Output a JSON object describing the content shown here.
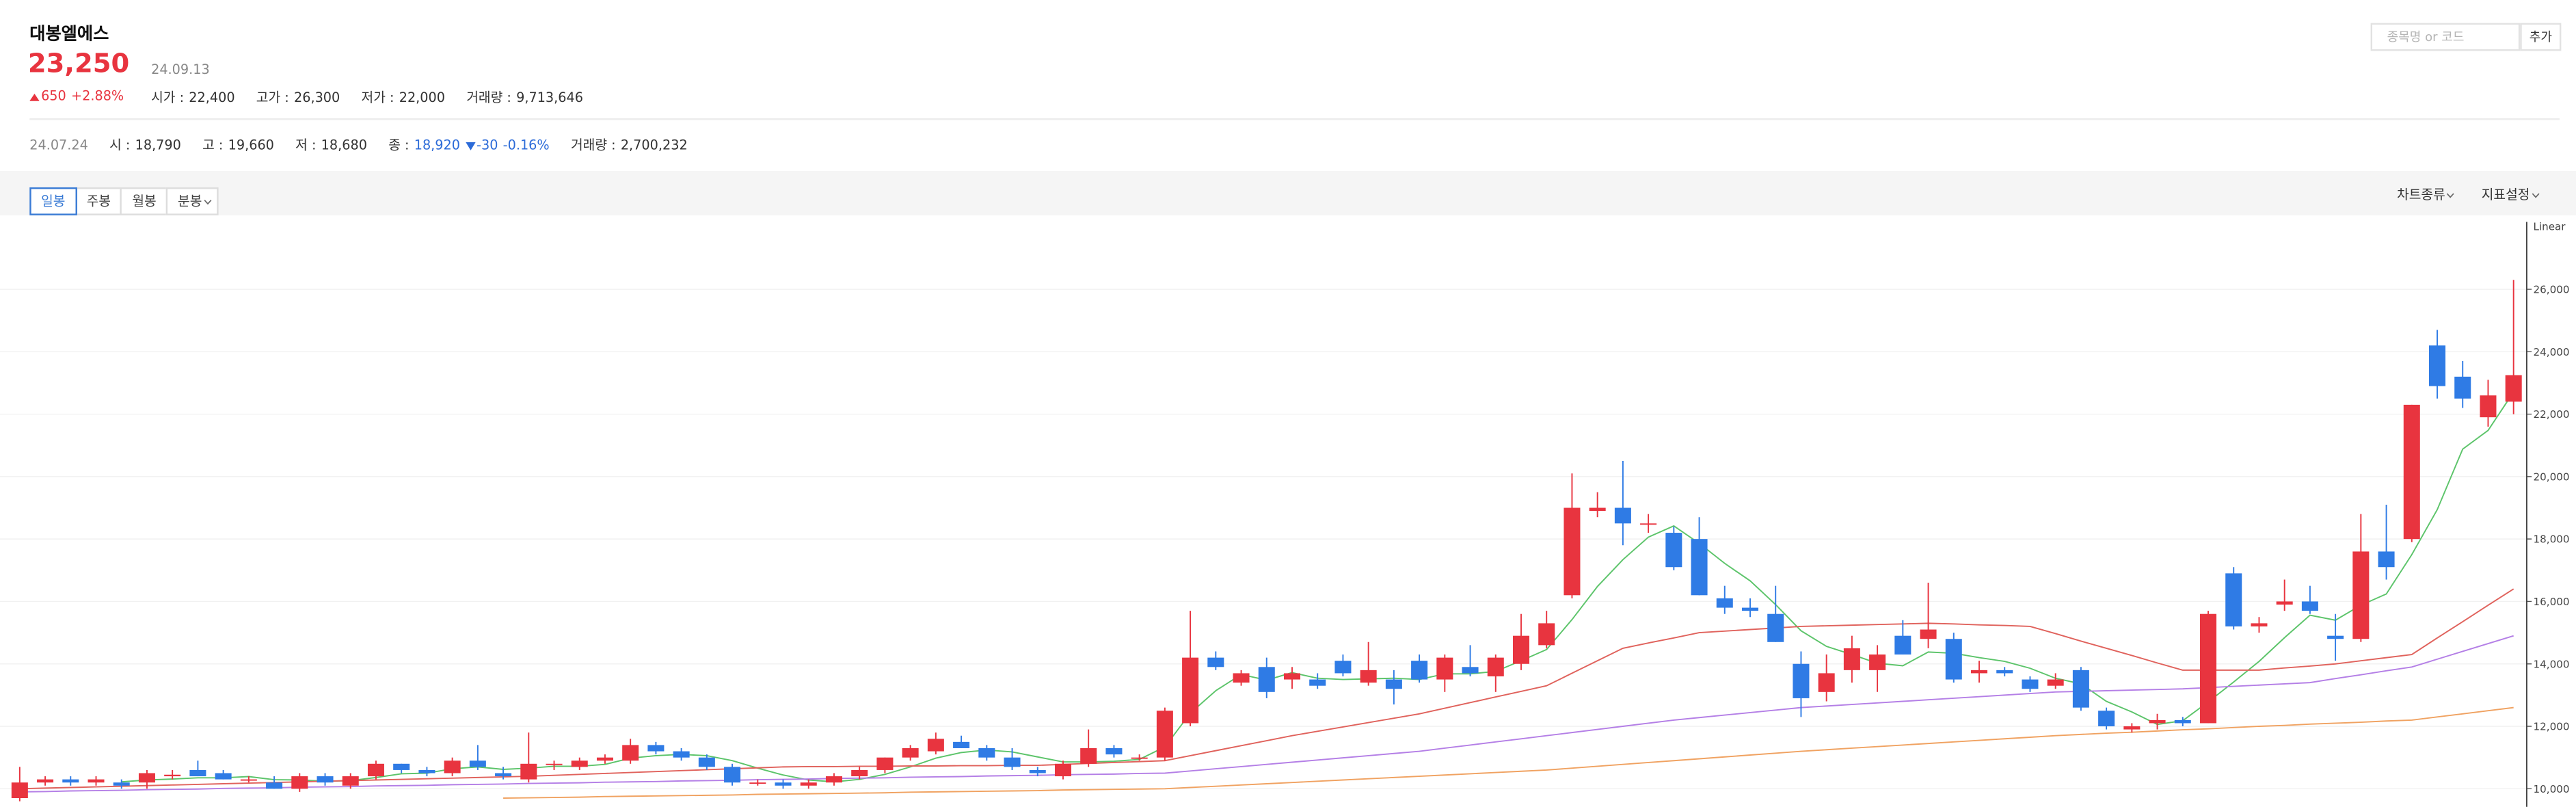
{
  "header": {
    "name": "대봉엘에스",
    "price": "23,250",
    "date": "24.09.13",
    "change": "650",
    "change_pct": "+2.88%",
    "stats": [
      {
        "label": "시가 :",
        "value": "22,400"
      },
      {
        "label": "고가 :",
        "value": "26,300"
      },
      {
        "label": "저가 :",
        "value": "22,000"
      },
      {
        "label": "거래량 :",
        "value": "9,713,646"
      }
    ],
    "search_placeholder": "종목명 or 코드",
    "add_button": "추가"
  },
  "hover": {
    "date": "24.07.24",
    "items": [
      {
        "label": "시 :",
        "value": "18,790"
      },
      {
        "label": "고 :",
        "value": "19,660"
      },
      {
        "label": "저 :",
        "value": "18,680"
      },
      {
        "label": "종 :",
        "value": "18,920",
        "color": "#2c6bd8"
      }
    ],
    "change": "-30",
    "change_pct": "-0.16%",
    "change_color": "#2c6bd8",
    "volume": {
      "label": "거래량 :",
      "value": "2,700,232"
    }
  },
  "toolbar": {
    "tabs": [
      "일봉",
      "주봉",
      "월봉",
      "분봉"
    ],
    "selected": 0,
    "right": [
      "차트종류",
      "지표설정"
    ]
  },
  "chart_data": {
    "type": "candlestick",
    "scale_label": "Linear",
    "up_color": "#e8343f",
    "down_color": "#2f7be5",
    "ylim": [
      9470,
      28160
    ],
    "yticks": [
      {
        "value": 10000,
        "label": "10,000"
      },
      {
        "value": 12000,
        "label": "12,000"
      },
      {
        "value": 14000,
        "label": "14,000"
      },
      {
        "value": 16000,
        "label": "16,000"
      },
      {
        "value": 18000,
        "label": "18,000"
      },
      {
        "value": 20000,
        "label": "20,000"
      },
      {
        "value": 22000,
        "label": "22,000"
      },
      {
        "value": 24000,
        "label": "24,000"
      },
      {
        "value": 26000,
        "label": "26,000"
      }
    ],
    "grid": true,
    "open": [
      9700,
      10200,
      10300,
      10200,
      10200,
      10200,
      10400,
      10600,
      10500,
      10300,
      10200,
      10000,
      10400,
      10100,
      10400,
      10800,
      10600,
      10500,
      10900,
      10500,
      10300,
      10800,
      10700,
      10900,
      10900,
      11400,
      11200,
      11000,
      10700,
      10200,
      10200,
      10100,
      10200,
      10400,
      10600,
      11000,
      11200,
      11500,
      11300,
      11000,
      10600,
      10400,
      10800,
      11300,
      11000,
      11000,
      12100,
      14200,
      13400,
      13900,
      13500,
      13500,
      14100,
      13400,
      13500,
      14100,
      13500,
      13900,
      13600,
      14000,
      14600,
      16200,
      18900,
      19000,
      18500,
      18200,
      18000,
      16100,
      15800,
      15600,
      14000,
      13100,
      13800,
      13800,
      14900,
      14800,
      14800,
      13700,
      13800,
      13500,
      13300,
      13800,
      12500,
      11900,
      12100,
      12200,
      12100,
      16900,
      15200,
      15900,
      16000,
      14900,
      14800,
      17600,
      18000,
      24200,
      23200,
      21900,
      22400
    ],
    "high": [
      10700,
      10400,
      10400,
      10400,
      10300,
      10600,
      10600,
      10900,
      10600,
      10400,
      10400,
      10500,
      10500,
      10500,
      10900,
      10800,
      10700,
      11000,
      11400,
      10700,
      11800,
      10900,
      11000,
      11100,
      11600,
      11500,
      11300,
      11100,
      10800,
      10300,
      10300,
      10300,
      10500,
      10700,
      11000,
      11400,
      11800,
      11700,
      11400,
      11300,
      10700,
      10900,
      11900,
      11400,
      11100,
      12600,
      15700,
      14400,
      13800,
      14200,
      13900,
      13700,
      14300,
      14700,
      13800,
      14300,
      14300,
      14600,
      14300,
      15600,
      15700,
      20100,
      19500,
      20500,
      18800,
      18400,
      18700,
      16500,
      16100,
      16500,
      14400,
      14300,
      14900,
      14600,
      15400,
      16600,
      15000,
      14100,
      13900,
      13600,
      13700,
      13900,
      12600,
      12100,
      12400,
      12300,
      15700,
      17100,
      15500,
      16700,
      16500,
      15600,
      18800,
      19100,
      22300,
      24700,
      23700,
      23100,
      26300
    ],
    "low": [
      9600,
      10100,
      10100,
      10100,
      10000,
      10000,
      10300,
      10400,
      10300,
      10200,
      10000,
      9900,
      10100,
      10000,
      10300,
      10500,
      10400,
      10400,
      10600,
      10300,
      10200,
      10600,
      10600,
      10800,
      10800,
      11100,
      10900,
      10600,
      10100,
      10100,
      10000,
      10000,
      10100,
      10300,
      10500,
      10900,
      11100,
      11300,
      10900,
      10600,
      10400,
      10300,
      10700,
      11000,
      10900,
      10900,
      12000,
      13800,
      13300,
      12900,
      13200,
      13200,
      13600,
      13300,
      12700,
      13400,
      13100,
      13600,
      13100,
      13800,
      14500,
      16100,
      18700,
      17800,
      18200,
      17000,
      16200,
      15600,
      15500,
      14700,
      12300,
      12800,
      13400,
      13100,
      14300,
      14500,
      13400,
      13400,
      13600,
      13100,
      13200,
      12500,
      11900,
      11800,
      11900,
      12000,
      12100,
      15100,
      15000,
      15700,
      15600,
      14100,
      14700,
      16700,
      17900,
      22500,
      22200,
      21600,
      22000
    ],
    "close": [
      10200,
      10300,
      10200,
      10300,
      10100,
      10500,
      10450,
      10400,
      10300,
      10300,
      10000,
      10400,
      10200,
      10400,
      10800,
      10600,
      10500,
      10900,
      10700,
      10400,
      10800,
      10800,
      10900,
      11000,
      11400,
      11200,
      11000,
      10700,
      10200,
      10200,
      10100,
      10200,
      10400,
      10600,
      11000,
      11300,
      11600,
      11300,
      11000,
      10700,
      10500,
      10800,
      11300,
      11100,
      11000,
      12500,
      14200,
      13900,
      13700,
      13100,
      13700,
      13300,
      13700,
      13800,
      13200,
      13500,
      14200,
      13700,
      14200,
      14900,
      15300,
      19000,
      19000,
      18500,
      18500,
      17100,
      16200,
      15800,
      15700,
      14700,
      12900,
      13700,
      14500,
      14300,
      14300,
      15100,
      13500,
      13800,
      13700,
      13200,
      13500,
      12600,
      12000,
      12000,
      12200,
      12100,
      15600,
      15200,
      15300,
      16000,
      15700,
      14800,
      17600,
      17100,
      22300,
      22900,
      22500,
      22600,
      23250
    ],
    "moving_averages": [
      {
        "color": "#5cc46a",
        "values": [
          null,
          null,
          null,
          null,
          10220,
          10280,
          10310,
          10350,
          10350,
          10390,
          10290,
          10280,
          10240,
          10260,
          10360,
          10480,
          10500,
          10640,
          10700,
          10620,
          10660,
          10720,
          10720,
          10780,
          10980,
          11060,
          11100,
          11060,
          10900,
          10660,
          10440,
          10280,
          10220,
          10300,
          10460,
          10700,
          10980,
          11160,
          11240,
          11180,
          11020,
          10860,
          10860,
          10880,
          10940,
          11340,
          12420,
          13140,
          13660,
          13480,
          13720,
          13540,
          13500,
          13520,
          13540,
          13500,
          13680,
          13680,
          13760,
          14100,
          14460,
          15420,
          16480,
          17340,
          18060,
          18420,
          17860,
          17220,
          16660,
          15900,
          15060,
          14560,
          14300,
          14020,
          13940,
          14380,
          14340,
          14200,
          14080,
          13860,
          13540,
          13360,
          12800,
          12460,
          12060,
          12180,
          12780,
          13420,
          14080,
          14840,
          15560,
          15400,
          15880,
          16240,
          17500,
          18940,
          20880,
          21480,
          22710
        ]
      },
      {
        "color": "#e0625c",
        "values": [
          10000,
          10020,
          10040,
          10060,
          10080,
          10100,
          10120,
          10140,
          10160,
          10180,
          10200,
          10220,
          10240,
          10260,
          10280,
          10300,
          10320,
          10340,
          10360,
          10380,
          10400,
          10430,
          10460,
          10490,
          10520,
          10550,
          10580,
          10610,
          10640,
          10670,
          10700,
          10710,
          10710,
          10720,
          10720,
          10730,
          10730,
          10740,
          10740,
          10750,
          10750,
          10780,
          10810,
          10840,
          10870,
          10900,
          11060,
          11220,
          11380,
          11540,
          11700,
          11840,
          11980,
          12120,
          12260,
          12400,
          12580,
          12760,
          12940,
          13120,
          13300,
          13700,
          14100,
          14500,
          14670,
          14830,
          15000,
          15050,
          15100,
          15150,
          15200,
          15220,
          15240,
          15260,
          15280,
          15300,
          15280,
          15250,
          15230,
          15200,
          14970,
          14730,
          14500,
          14270,
          14030,
          13800,
          13800,
          13800,
          13800,
          13870,
          13930,
          14000,
          14100,
          14200,
          14300,
          14830,
          15350,
          15880,
          16400
        ]
      },
      {
        "color": "#b47fe6",
        "values": [
          9900,
          9910,
          9930,
          9940,
          9950,
          9970,
          9980,
          9990,
          10010,
          10020,
          10030,
          10050,
          10060,
          10070,
          10090,
          10100,
          10110,
          10130,
          10140,
          10150,
          10170,
          10180,
          10190,
          10210,
          10220,
          10230,
          10250,
          10260,
          10270,
          10290,
          10300,
          10310,
          10330,
          10340,
          10350,
          10370,
          10380,
          10390,
          10410,
          10420,
          10430,
          10450,
          10460,
          10470,
          10490,
          10500,
          10570,
          10640,
          10710,
          10780,
          10850,
          10920,
          10990,
          11060,
          11130,
          11200,
          11300,
          11400,
          11500,
          11600,
          11700,
          11800,
          11900,
          12000,
          12100,
          12200,
          12280,
          12360,
          12440,
          12520,
          12600,
          12650,
          12700,
          12750,
          12800,
          12850,
          12900,
          12950,
          13000,
          13050,
          13100,
          13120,
          13140,
          13160,
          13180,
          13200,
          13240,
          13280,
          13320,
          13360,
          13400,
          13530,
          13650,
          13780,
          13900,
          14150,
          14400,
          14650,
          14900
        ]
      },
      {
        "color": "#f0a261",
        "values": [
          null,
          null,
          null,
          null,
          null,
          null,
          null,
          null,
          null,
          null,
          null,
          null,
          null,
          null,
          null,
          null,
          null,
          null,
          null,
          9700,
          9710,
          9720,
          9730,
          9750,
          9760,
          9770,
          9780,
          9790,
          9800,
          9820,
          9830,
          9840,
          9850,
          9860,
          9870,
          9890,
          9900,
          9910,
          9920,
          9930,
          9940,
          9960,
          9970,
          9980,
          9990,
          10000,
          10040,
          10080,
          10120,
          10160,
          10200,
          10240,
          10280,
          10320,
          10360,
          10400,
          10440,
          10480,
          10520,
          10560,
          10600,
          10660,
          10720,
          10780,
          10840,
          10900,
          10960,
          11020,
          11080,
          11140,
          11200,
          11250,
          11300,
          11350,
          11400,
          11450,
          11500,
          11550,
          11600,
          11650,
          11700,
          11740,
          11780,
          11810,
          11850,
          11890,
          11920,
          11960,
          12000,
          12030,
          12070,
          12100,
          12130,
          12170,
          12200,
          12300,
          12400,
          12500,
          12600
        ]
      }
    ]
  }
}
